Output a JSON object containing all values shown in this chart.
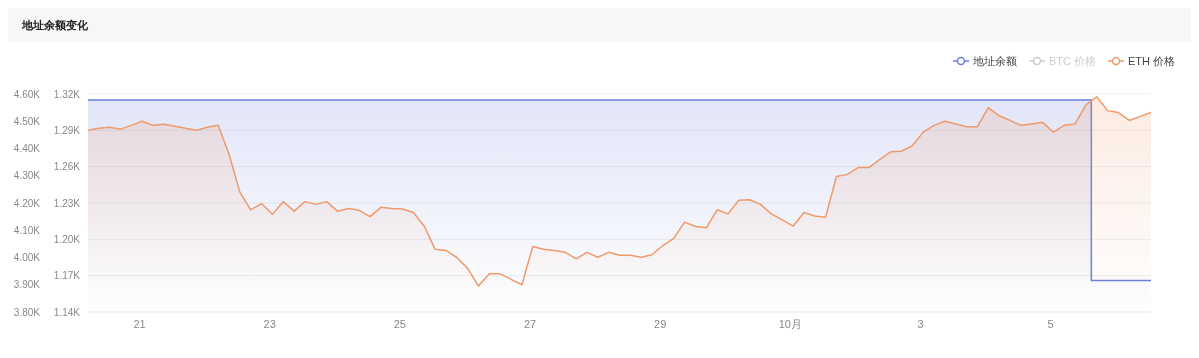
{
  "chart_data": {
    "type": "area",
    "title": "地址余额变化",
    "x": [
      "--09-20T05:00",
      "--09-20T09:00",
      "--09-20T13:00",
      "--09-20T17:00",
      "--09-20T21:00",
      "--09-21T01:00",
      "--09-21T05:00",
      "--09-21T09:00",
      "--09-21T13:00",
      "--09-21T17:00",
      "--09-21T21:00",
      "--09-22T01:00",
      "--09-22T05:00",
      "--09-22T09:00",
      "--09-22T13:00",
      "--09-22T17:00",
      "--09-22T21:00",
      "--09-23T01:00",
      "--09-23T05:00",
      "--09-23T09:00",
      "--09-23T13:00",
      "--09-23T17:00",
      "--09-23T21:00",
      "--09-24T01:00",
      "--09-24T05:00",
      "--09-24T09:00",
      "--09-24T13:00",
      "--09-24T17:00",
      "--09-24T21:00",
      "--09-25T01:00",
      "--09-25T05:00",
      "--09-25T09:00",
      "--09-25T13:00",
      "--09-25T17:00",
      "--09-25T21:00",
      "--09-26T01:00",
      "--09-26T05:00",
      "--09-26T09:00",
      "--09-26T13:00",
      "--09-26T17:00",
      "--09-26T21:00",
      "--09-27T01:00",
      "--09-27T05:00",
      "--09-27T09:00",
      "--09-27T13:00",
      "--09-27T17:00",
      "--09-27T21:00",
      "--09-28T01:00",
      "--09-28T05:00",
      "--09-28T09:00",
      "--09-28T13:00",
      "--09-28T17:00",
      "--09-28T21:00",
      "--09-29T01:00",
      "--09-29T05:00",
      "--09-29T09:00",
      "--09-29T13:00",
      "--09-29T17:00",
      "--09-29T21:00",
      "--09-30T01:00",
      "--09-30T05:00",
      "--09-30T09:00",
      "--09-30T13:00",
      "--09-30T17:00",
      "--09-30T21:00",
      "--10-01T01:00",
      "--10-01T05:00",
      "--10-01T09:00",
      "--10-01T13:00",
      "--10-01T17:00",
      "--10-01T21:00",
      "--10-02T01:00",
      "--10-02T05:00",
      "--10-02T09:00",
      "--10-02T13:00",
      "--10-02T17:00",
      "--10-02T21:00",
      "--10-03T01:00",
      "--10-03T05:00",
      "--10-03T09:00",
      "--10-03T13:00",
      "--10-03T17:00",
      "--10-03T21:00",
      "--10-04T01:00",
      "--10-04T05:00",
      "--10-04T09:00",
      "--10-04T13:00",
      "--10-04T17:00",
      "--10-04T21:00",
      "--10-05T01:00",
      "--10-05T05:00",
      "--10-05T09:00",
      "--10-05T13:00",
      "--10-05T17:00",
      "--10-05T21:00",
      "--10-06T01:00",
      "--10-06T05:00",
      "--10-06T09:00",
      "--10-06T13:00"
    ],
    "series": [
      {
        "name": "地址余额",
        "type": "step",
        "axis": "y",
        "color": "#6a7fdb",
        "x": [
          "--09-20T05:00",
          "--10-05T15:00",
          "--10-06T13:00"
        ],
        "values": [
          1315,
          1166,
          1166
        ]
      },
      {
        "name": "BTC 价格",
        "type": "line",
        "axis": "y2",
        "color": "#cccccc",
        "values": [
          null,
          null,
          null,
          null,
          null,
          null,
          null,
          null,
          null,
          null,
          null,
          null,
          null,
          null,
          null,
          null,
          null,
          null,
          null,
          null,
          null,
          null,
          null,
          null,
          null,
          null,
          null,
          null,
          null,
          null,
          null,
          null,
          null,
          null,
          null,
          null,
          null,
          null,
          null,
          null,
          null,
          null,
          null,
          null,
          null,
          null,
          null,
          null,
          null,
          null,
          null,
          null,
          null,
          null,
          null,
          null,
          null,
          null,
          null,
          null,
          null,
          null,
          null,
          null,
          null,
          null,
          null,
          null,
          null,
          null,
          null,
          null,
          null,
          null,
          null,
          null,
          null,
          null,
          null,
          null,
          null,
          null,
          null,
          null,
          null,
          null,
          null,
          null,
          null,
          null,
          null,
          null,
          null,
          null,
          null,
          null,
          null,
          null,
          null
        ]
      },
      {
        "name": "ETH 价格",
        "type": "area",
        "axis": "y2",
        "color": "#ef9a6b",
        "values": [
          4467,
          4474,
          4478,
          4471,
          4485,
          4500,
          4485,
          4489,
          4482,
          4474,
          4467,
          4478,
          4485,
          4380,
          4240,
          4175,
          4198,
          4159,
          4205,
          4170,
          4205,
          4195,
          4205,
          4170,
          4180,
          4173,
          4150,
          4184,
          4180,
          4178,
          4165,
          4115,
          4030,
          4026,
          4000,
          3960,
          3895,
          3940,
          3940,
          3920,
          3900,
          4040,
          4030,
          4026,
          4019,
          3995,
          4019,
          4001,
          4019,
          4008,
          4008,
          4001,
          4010,
          4044,
          4070,
          4130,
          4114,
          4109,
          4175,
          4160,
          4210,
          4212,
          4195,
          4160,
          4138,
          4115,
          4165,
          4152,
          4148,
          4297,
          4305,
          4330,
          4330,
          4360,
          4388,
          4390,
          4410,
          4460,
          4485,
          4500,
          4490,
          4480,
          4480,
          4550,
          4520,
          4503,
          4485,
          4490,
          4496,
          4460,
          4485,
          4490,
          4560,
          4590,
          4539,
          4532,
          4503,
          4518,
          4532
        ]
      }
    ],
    "xlim": [
      "--09-20T05:00",
      "--10-06T13:00"
    ],
    "xticks": [
      {
        "value": "--09-21",
        "label": "21"
      },
      {
        "value": "--09-23",
        "label": "23"
      },
      {
        "value": "--09-25",
        "label": "25"
      },
      {
        "value": "--09-27",
        "label": "27"
      },
      {
        "value": "--09-29",
        "label": "29"
      },
      {
        "value": "--10-01",
        "label": "10月"
      },
      {
        "value": "--10-03",
        "label": "3"
      },
      {
        "value": "--10-05",
        "label": "5"
      }
    ],
    "ylim": [
      1140,
      1320
    ],
    "yticks": [
      {
        "value": 1140,
        "label": "1.14K"
      },
      {
        "value": 1170,
        "label": "1.17K"
      },
      {
        "value": 1200,
        "label": "1.20K"
      },
      {
        "value": 1230,
        "label": "1.23K"
      },
      {
        "value": 1260,
        "label": "1.26K"
      },
      {
        "value": 1290,
        "label": "1.29K"
      },
      {
        "value": 1320,
        "label": "1.32K"
      }
    ],
    "y2lim": [
      3800,
      4600
    ],
    "y2ticks": [
      {
        "value": 3800,
        "label": "3.80K"
      },
      {
        "value": 3900,
        "label": "3.90K"
      },
      {
        "value": 4000,
        "label": "4.00K"
      },
      {
        "value": 4100,
        "label": "4.10K"
      },
      {
        "value": 4200,
        "label": "4.20K"
      },
      {
        "value": 4300,
        "label": "4.30K"
      },
      {
        "value": 4400,
        "label": "4.40K"
      },
      {
        "value": 4500,
        "label": "4.50K"
      },
      {
        "value": 4600,
        "label": "4.60K"
      }
    ],
    "grid": "y",
    "legend": "top right",
    "marker": "none"
  }
}
